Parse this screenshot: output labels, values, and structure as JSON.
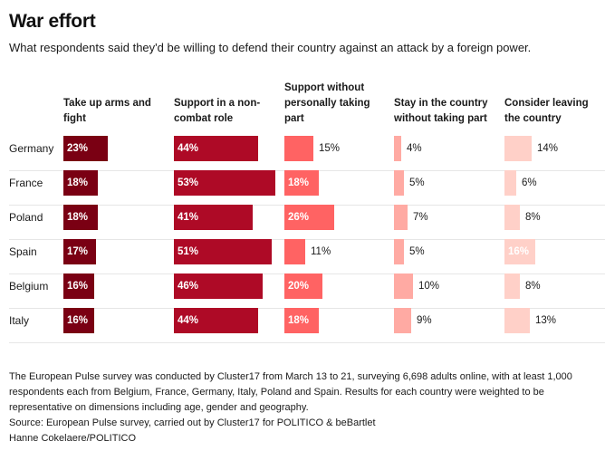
{
  "chart_data": {
    "type": "bar",
    "title": "War effort",
    "subtitle": "What respondents said they'd be willing to defend their country against an attack by a foreign power.",
    "xlabel": "",
    "ylabel": "",
    "unit": "%",
    "categories": [
      "Germany",
      "France",
      "Poland",
      "Spain",
      "Belgium",
      "Italy"
    ],
    "series": [
      {
        "name": "Take up arms and fight",
        "color": "#7a0013",
        "values": [
          23,
          18,
          18,
          17,
          16,
          16
        ]
      },
      {
        "name": "Support in a non-combat role",
        "color": "#ae0a26",
        "values": [
          44,
          53,
          41,
          51,
          46,
          44
        ]
      },
      {
        "name": "Support without personally taking part",
        "color": "#ff6363",
        "values": [
          15,
          18,
          26,
          11,
          20,
          18
        ]
      },
      {
        "name": "Stay in the country without taking part",
        "color": "#ffaaa3",
        "values": [
          4,
          5,
          7,
          5,
          10,
          9
        ]
      },
      {
        "name": "Consider leaving the country",
        "color": "#ffd0c8",
        "values": [
          14,
          6,
          8,
          16,
          8,
          13
        ]
      }
    ],
    "headers": [
      [
        "Take up arms and",
        "fight"
      ],
      [
        "Support in a non-",
        "combat role"
      ],
      [
        "Support without",
        "personally taking",
        "part"
      ],
      [
        "Stay in the country",
        "without taking part"
      ],
      [
        "Consider leaving",
        "the country"
      ]
    ],
    "label_colors": {
      "inside": "#ffffff",
      "outside": "#1a1a1a"
    }
  },
  "footer": {
    "note": "The European Pulse survey was conducted by Cluster17 from March 13 to 21, surveying 6,698 adults online, with at least 1,000 respondents each from Belgium, France, Germany, Italy, Poland and Spain. Results for each country were weighted to be representative on dimensions including age, gender and geography.",
    "source": "Source: European Pulse survey, carried out by Cluster17 for POLITICO & beBartlet",
    "credit": "Hanne Cokelaere/POLITICO"
  }
}
